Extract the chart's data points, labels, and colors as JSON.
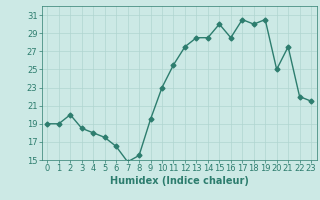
{
  "x": [
    0,
    1,
    2,
    3,
    4,
    5,
    6,
    7,
    8,
    9,
    10,
    11,
    12,
    13,
    14,
    15,
    16,
    17,
    18,
    19,
    20,
    21,
    22,
    23
  ],
  "y": [
    19,
    19,
    20,
    18.5,
    18,
    17.5,
    16.5,
    14.8,
    15.5,
    19.5,
    23,
    25.5,
    27.5,
    28.5,
    28.5,
    30,
    28.5,
    30.5,
    30,
    30.5,
    25,
    27.5,
    22,
    21.5
  ],
  "xlabel": "Humidex (Indice chaleur)",
  "line_color": "#2d7d6e",
  "marker": "D",
  "marker_size": 2.5,
  "bg_color": "#cce9e5",
  "grid_color": "#b0d5d0",
  "ylim": [
    15,
    32
  ],
  "yticks": [
    15,
    17,
    19,
    21,
    23,
    25,
    27,
    29,
    31
  ],
  "xticks": [
    0,
    1,
    2,
    3,
    4,
    5,
    6,
    7,
    8,
    9,
    10,
    11,
    12,
    13,
    14,
    15,
    16,
    17,
    18,
    19,
    20,
    21,
    22,
    23
  ],
  "label_fontsize": 7,
  "tick_fontsize": 6
}
